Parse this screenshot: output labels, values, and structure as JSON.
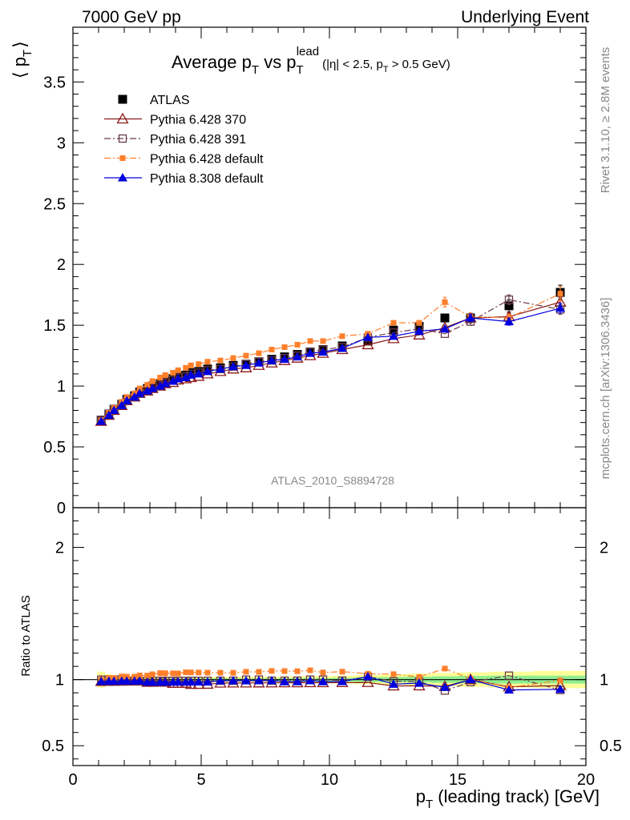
{
  "header": {
    "left": "7000 GeV pp",
    "right": "Underlying Event"
  },
  "side": {
    "rivet": "Rivet 3.1.10, ≥ 2.8M events",
    "mcplots": "mcplots.cern.ch [arXiv:1306.3436]"
  },
  "watermark": "ATLAS_2010_S8894728",
  "chart_data": [
    {
      "type": "line",
      "title": {
        "prefix": "Average p",
        "sub1": "T",
        "mid": " vs p",
        "sub2": "T",
        "sup": "lead",
        "cut_open": "(|η| < 2.5, p",
        "cut_sub": "T",
        "cut_close": " > 0.5 GeV)"
      },
      "ylabel": {
        "main": "⟨ p",
        "sub": "T",
        "close": "⟩"
      },
      "xlim": [
        0,
        20
      ],
      "ylim": [
        0,
        3.95
      ],
      "yticks": [
        "0",
        "0.5",
        "1",
        "1.5",
        "2",
        "2.5",
        "3",
        "3.5"
      ],
      "x": [
        1.1,
        1.4,
        1.6,
        1.9,
        2.1,
        2.4,
        2.6,
        2.9,
        3.1,
        3.4,
        3.6,
        3.9,
        4.1,
        4.4,
        4.6,
        4.9,
        5.25,
        5.75,
        6.25,
        6.75,
        7.25,
        7.75,
        8.25,
        8.75,
        9.25,
        9.75,
        10.5,
        11.5,
        12.5,
        13.5,
        14.5,
        15.5,
        17,
        19
      ],
      "series": [
        {
          "name": "ATLAS",
          "color": "#000000",
          "marker": "square-filled",
          "line": "none",
          "values": [
            0.72,
            0.77,
            0.81,
            0.85,
            0.89,
            0.92,
            0.95,
            0.98,
            1.0,
            1.02,
            1.04,
            1.06,
            1.08,
            1.09,
            1.11,
            1.12,
            1.14,
            1.15,
            1.17,
            1.18,
            1.2,
            1.22,
            1.24,
            1.26,
            1.28,
            1.3,
            1.33,
            1.37,
            1.46,
            1.49,
            1.56,
            1.56,
            1.66,
            1.77
          ],
          "errors": [
            0.01,
            0.01,
            0.01,
            0.01,
            0.01,
            0.01,
            0.01,
            0.01,
            0.01,
            0.01,
            0.01,
            0.01,
            0.01,
            0.01,
            0.01,
            0.01,
            0.01,
            0.01,
            0.01,
            0.01,
            0.01,
            0.01,
            0.01,
            0.01,
            0.01,
            0.01,
            0.02,
            0.02,
            0.02,
            0.03,
            0.03,
            0.04,
            0.05,
            0.06
          ]
        },
        {
          "name": "Pythia 6.428 370",
          "color": "#8b1a1a",
          "marker": "triangle-open",
          "line": "solid",
          "values": [
            0.71,
            0.76,
            0.8,
            0.84,
            0.88,
            0.91,
            0.94,
            0.96,
            0.98,
            1.0,
            1.02,
            1.03,
            1.05,
            1.06,
            1.07,
            1.08,
            1.1,
            1.12,
            1.14,
            1.15,
            1.17,
            1.19,
            1.21,
            1.23,
            1.25,
            1.27,
            1.3,
            1.34,
            1.39,
            1.42,
            1.48,
            1.56,
            1.57,
            1.69
          ],
          "errors": [
            0.005,
            0.005,
            0.005,
            0.005,
            0.005,
            0.005,
            0.005,
            0.005,
            0.005,
            0.005,
            0.005,
            0.005,
            0.005,
            0.005,
            0.005,
            0.005,
            0.005,
            0.005,
            0.005,
            0.005,
            0.005,
            0.005,
            0.005,
            0.005,
            0.01,
            0.01,
            0.01,
            0.01,
            0.02,
            0.02,
            0.02,
            0.03,
            0.03,
            0.04
          ]
        },
        {
          "name": "Pythia 6.428 391",
          "color": "#6b3a4a",
          "marker": "square-open",
          "line": "dashdot",
          "values": [
            0.72,
            0.77,
            0.81,
            0.85,
            0.88,
            0.91,
            0.94,
            0.97,
            0.99,
            1.01,
            1.03,
            1.05,
            1.07,
            1.08,
            1.1,
            1.11,
            1.13,
            1.14,
            1.16,
            1.18,
            1.2,
            1.21,
            1.23,
            1.25,
            1.28,
            1.3,
            1.32,
            1.4,
            1.44,
            1.47,
            1.43,
            1.53,
            1.71,
            1.63
          ],
          "errors": [
            0.005,
            0.005,
            0.005,
            0.005,
            0.005,
            0.005,
            0.005,
            0.005,
            0.005,
            0.005,
            0.005,
            0.005,
            0.005,
            0.005,
            0.005,
            0.005,
            0.005,
            0.005,
            0.005,
            0.005,
            0.005,
            0.005,
            0.005,
            0.005,
            0.01,
            0.01,
            0.01,
            0.01,
            0.02,
            0.02,
            0.02,
            0.03,
            0.04,
            0.04
          ]
        },
        {
          "name": "Pythia 6.428 default",
          "color": "#ff7f2a",
          "marker": "square-small",
          "line": "dashdot",
          "values": [
            0.72,
            0.78,
            0.82,
            0.87,
            0.91,
            0.94,
            0.98,
            1.01,
            1.04,
            1.07,
            1.09,
            1.11,
            1.13,
            1.15,
            1.17,
            1.18,
            1.2,
            1.21,
            1.23,
            1.25,
            1.27,
            1.3,
            1.32,
            1.34,
            1.37,
            1.37,
            1.41,
            1.43,
            1.52,
            1.52,
            1.69,
            1.57,
            1.56,
            1.76
          ],
          "errors": [
            0.005,
            0.005,
            0.005,
            0.005,
            0.005,
            0.005,
            0.005,
            0.005,
            0.005,
            0.005,
            0.005,
            0.005,
            0.005,
            0.005,
            0.005,
            0.005,
            0.005,
            0.005,
            0.005,
            0.005,
            0.005,
            0.005,
            0.005,
            0.005,
            0.01,
            0.01,
            0.01,
            0.01,
            0.02,
            0.02,
            0.04,
            0.03,
            0.03,
            0.06
          ]
        },
        {
          "name": "Pythia 8.308 default",
          "color": "#0000dd",
          "marker": "triangle-filled",
          "line": "solid",
          "values": [
            0.71,
            0.76,
            0.8,
            0.84,
            0.88,
            0.91,
            0.94,
            0.96,
            0.98,
            1.0,
            1.02,
            1.04,
            1.06,
            1.07,
            1.09,
            1.1,
            1.12,
            1.14,
            1.16,
            1.17,
            1.19,
            1.21,
            1.22,
            1.24,
            1.27,
            1.28,
            1.31,
            1.4,
            1.41,
            1.45,
            1.47,
            1.56,
            1.53,
            1.64
          ],
          "errors": [
            0.005,
            0.005,
            0.005,
            0.005,
            0.005,
            0.005,
            0.005,
            0.005,
            0.005,
            0.005,
            0.005,
            0.005,
            0.005,
            0.005,
            0.005,
            0.005,
            0.005,
            0.005,
            0.005,
            0.005,
            0.005,
            0.005,
            0.005,
            0.005,
            0.01,
            0.01,
            0.01,
            0.01,
            0.02,
            0.02,
            0.02,
            0.03,
            0.03,
            0.04
          ]
        }
      ],
      "legend": "top-left"
    },
    {
      "type": "line",
      "ylabel": "Ratio to ATLAS",
      "xlabel": {
        "main": "p",
        "sub": "T",
        "rest": " (leading track) [GeV]"
      },
      "xlim": [
        0,
        20
      ],
      "ylim": [
        0.35,
        2.3
      ],
      "xticks": [
        "0",
        "5",
        "10",
        "15",
        "20"
      ],
      "yticks_left": [
        "0.5",
        "1",
        "2"
      ],
      "yticks_right": [
        "0.5",
        "1",
        "2"
      ],
      "reference": 1,
      "band_colors": {
        "inner": "#90ee90",
        "outer": "#ffff99"
      },
      "band_inner": [
        0.015,
        0.012,
        0.01,
        0.008,
        0.008,
        0.008,
        0.008,
        0.008,
        0.008,
        0.008,
        0.008,
        0.008,
        0.008,
        0.008,
        0.008,
        0.008,
        0.01,
        0.01,
        0.01,
        0.01,
        0.01,
        0.01,
        0.01,
        0.012,
        0.012,
        0.012,
        0.015,
        0.018,
        0.02,
        0.022,
        0.025,
        0.028,
        0.03,
        0.03
      ],
      "band_outer": [
        0.06,
        0.04,
        0.03,
        0.025,
        0.02,
        0.02,
        0.02,
        0.02,
        0.02,
        0.02,
        0.02,
        0.02,
        0.02,
        0.02,
        0.02,
        0.02,
        0.022,
        0.022,
        0.022,
        0.022,
        0.022,
        0.022,
        0.024,
        0.025,
        0.026,
        0.028,
        0.03,
        0.035,
        0.04,
        0.045,
        0.05,
        0.055,
        0.06,
        0.065
      ]
    }
  ]
}
